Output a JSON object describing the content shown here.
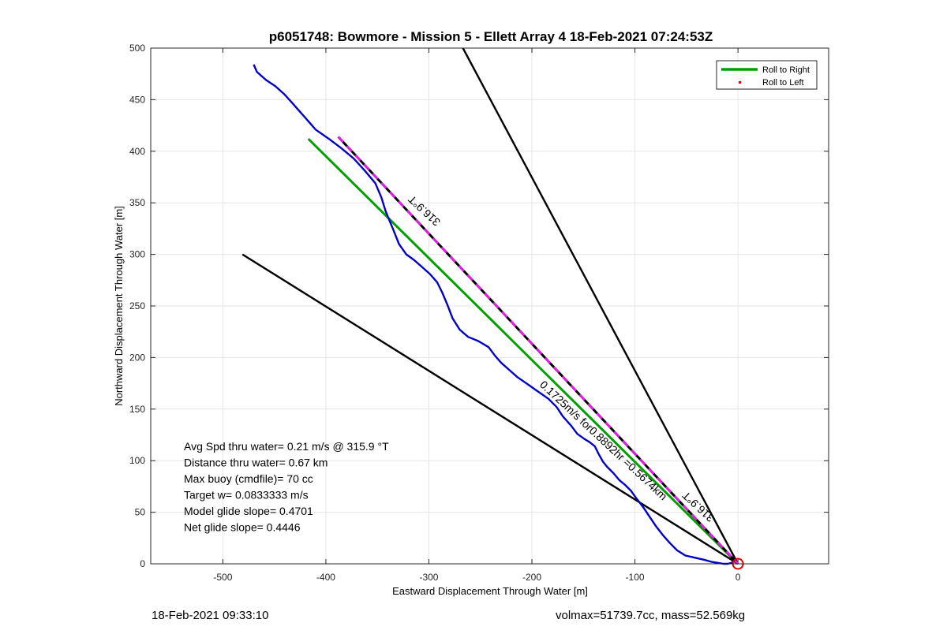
{
  "chart_data": {
    "type": "line",
    "title": "p6051748: Bowmore - Mission 5 - Ellett Array 4 18-Feb-2021 07:24:53Z",
    "xlabel": "Eastward Displacement Through Water [m]",
    "ylabel": "Northward Displacement Through Water [m]",
    "xlim": [
      -570,
      88
    ],
    "ylim": [
      0,
      500
    ],
    "xticks": [
      -500,
      -400,
      -300,
      -200,
      -100,
      0
    ],
    "yticks": [
      0,
      50,
      100,
      150,
      200,
      250,
      300,
      350,
      400,
      450,
      500
    ],
    "grid": true,
    "legend_position": "top-right",
    "legend": [
      {
        "label": "Roll to Right",
        "color": "#00a000"
      },
      {
        "label": "Roll to Left",
        "color": "#e00000"
      }
    ],
    "series": [
      {
        "name": "Roll to Right",
        "color": "#00a000",
        "x": [
          -417,
          0
        ],
        "y": [
          412,
          0
        ]
      },
      {
        "name": "",
        "color": "#0000c8",
        "x": [
          -470,
          -467,
          -458,
          -449,
          -440,
          -432,
          -424,
          -416,
          -410,
          -397,
          -385,
          -373,
          -362,
          -352,
          -346,
          -342,
          -335,
          -329,
          -322,
          -315,
          -308,
          -299,
          -292,
          -287,
          -282,
          -277,
          -270,
          -262,
          -252,
          -242,
          -236,
          -230,
          -222,
          -214,
          -204,
          -194,
          -184,
          -176,
          -170,
          -162,
          -156,
          -149,
          -144,
          -139,
          -135,
          -131,
          -127,
          -121,
          -115,
          -109,
          -104,
          -99,
          -92,
          -86,
          -80,
          -73,
          -66,
          -59,
          -51,
          -42,
          -33,
          -26,
          -20,
          -14,
          -10,
          -6,
          -3
        ],
        "y": [
          484,
          477,
          469,
          463,
          455,
          446,
          437,
          428,
          421,
          412,
          403,
          393,
          381,
          369,
          355,
          342,
          325,
          310,
          300,
          295,
          289,
          281,
          273,
          263,
          251,
          238,
          227,
          220,
          216,
          210,
          202,
          195,
          188,
          181,
          174,
          167,
          160,
          152,
          143,
          134,
          126,
          121,
          118,
          114,
          106,
          99,
          94,
          88,
          81,
          76,
          71,
          64,
          55,
          46,
          37,
          28,
          20,
          13,
          8,
          6,
          4,
          2,
          1,
          0,
          0,
          1,
          4
        ]
      },
      {
        "name": "",
        "color": "#000000",
        "x": [
          -481,
          0
        ],
        "y": [
          300,
          0
        ]
      },
      {
        "name": "",
        "color": "#000000",
        "x": [
          -267,
          0
        ],
        "y": [
          500,
          0
        ]
      },
      {
        "name": "",
        "color": "#e020e0",
        "dashed": true,
        "x": [
          -388,
          0
        ],
        "y": [
          414,
          0
        ]
      }
    ],
    "annotations": [
      {
        "text": "316.9°T",
        "x": -302,
        "y": 345,
        "rotate": 223
      },
      {
        "text": "316.9°T",
        "x": -36,
        "y": 58,
        "rotate": 223
      },
      {
        "text": "0.1725m/s for0.8892hr =0.5674km",
        "x": -133,
        "y": 117,
        "rotate": 43
      }
    ],
    "stats_text": [
      "Avg Spd thru water=  0.21 m/s @ 315.9 °T",
      "Distance thru water=  0.67 km",
      "Max buoy (cmdfile)= 70 cc",
      "Target w= 0.0833333 m/s",
      "Model glide slope= 0.4701",
      "Net glide slope= 0.4446"
    ]
  },
  "footer": {
    "left": "18-Feb-2021 09:33:10",
    "right": "volmax=51739.7cc, mass=52.569kg"
  }
}
